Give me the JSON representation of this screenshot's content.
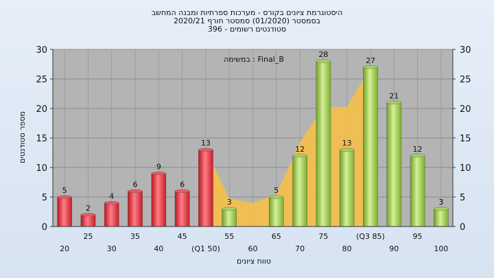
{
  "chart_data": {
    "type": "bar",
    "title_lines": [
      "היסטוגרמת ציונים בקורס - מערכות ספרתיות ומבנה המחשב",
      "בסמסטר  (01/2020)  סמסטר חורף  2020/21",
      "סטודנטים רשומים - 396"
    ],
    "annotation": "במשימה : Final_B",
    "xlabel": "טווח ציונים",
    "ylabel": "מספר סטודנטים",
    "ylim": [
      0,
      30
    ],
    "yticks": [
      0,
      5,
      10,
      15,
      20,
      25,
      30
    ],
    "categories": [
      "20",
      "25",
      "30",
      "35",
      "40",
      "45",
      "(Q1 50)",
      "55",
      "60",
      "65",
      "70",
      "75",
      "80",
      "(Q3 85)",
      "90",
      "95",
      "100"
    ],
    "values": [
      5,
      2,
      4,
      6,
      9,
      6,
      13,
      3,
      0,
      5,
      12,
      28,
      13,
      27,
      21,
      12,
      3
    ],
    "data_labels": [
      "5",
      "2",
      "4",
      "6",
      "9",
      "6",
      "13",
      "3",
      "",
      "5",
      "12",
      "28",
      "13",
      "27",
      "21",
      "12",
      "3"
    ],
    "bar_colors": [
      "#d9303a",
      "#d9303a",
      "#d9303a",
      "#d9303a",
      "#d9303a",
      "#d9303a",
      "#d9303a",
      "#8cbf3a",
      "#8cbf3a",
      "#8cbf3a",
      "#8cbf3a",
      "#8cbf3a",
      "#8cbf3a",
      "#8cbf3a",
      "#8cbf3a",
      "#8cbf3a",
      "#8cbf3a"
    ],
    "area_color": "#f5c04a",
    "plot_background": "#b4b4b4",
    "grid": true
  }
}
